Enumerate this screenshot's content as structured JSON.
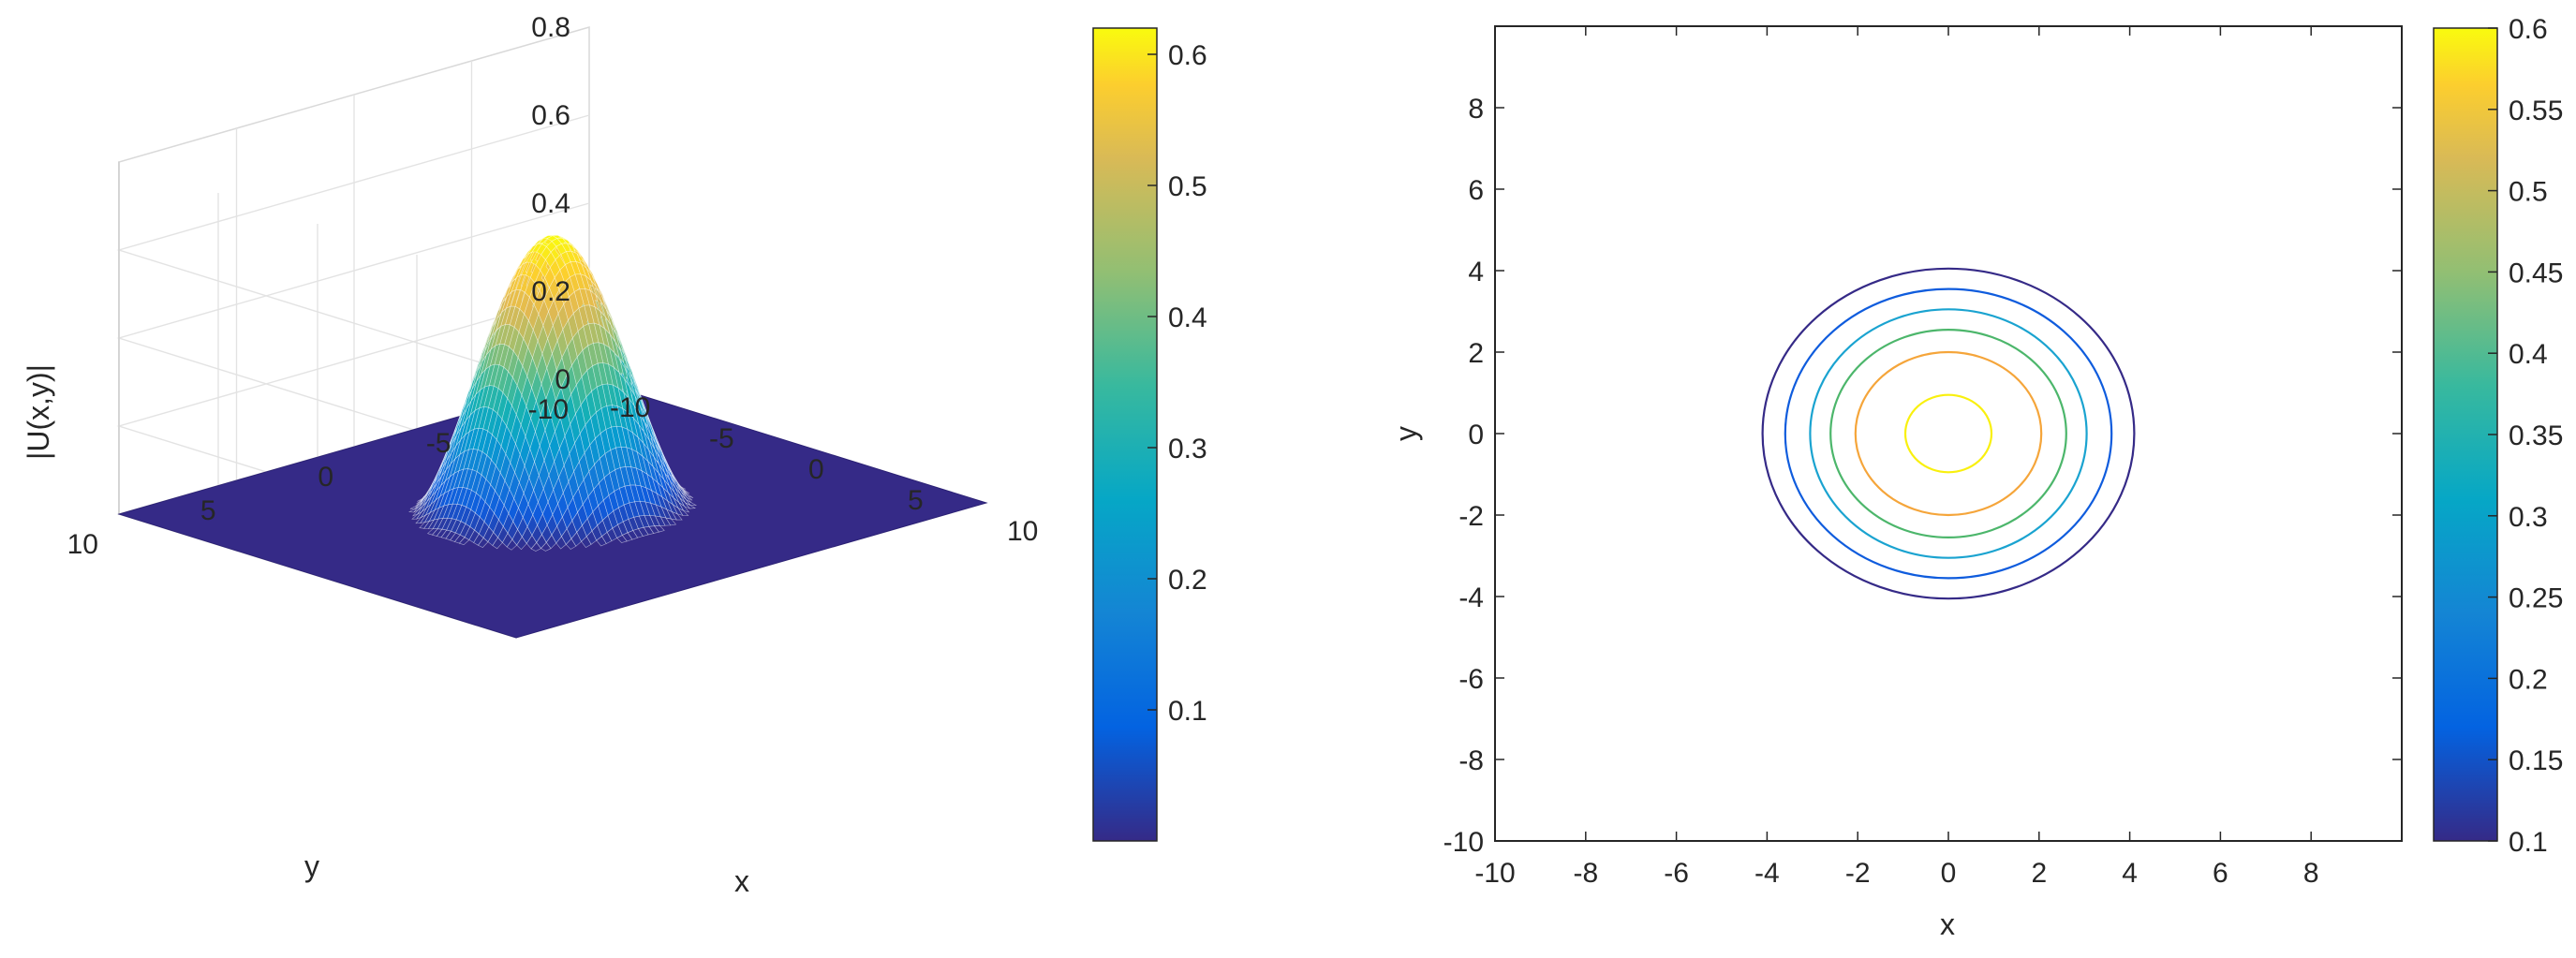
{
  "chart_data": [
    {
      "type": "surface",
      "z_function": "sech-like bell: peak 0.62 at (0,0), falls to 0 near r=4.6",
      "xlabel": "x",
      "ylabel": "y",
      "zlabel": "|U(x,y)|",
      "xlim": [
        -10,
        10
      ],
      "ylim": [
        -10,
        10
      ],
      "zlim": [
        0,
        0.8
      ],
      "x_ticks": [
        "-10",
        "-5",
        "0",
        "5",
        "10"
      ],
      "y_ticks": [
        "10",
        "5",
        "0",
        "-5",
        "-10"
      ],
      "z_ticks": [
        "0",
        "0.2",
        "0.4",
        "0.6",
        "0.8"
      ],
      "peak": 0.62,
      "colormap": "parula",
      "grid": true,
      "colorbar": {
        "range": [
          0,
          0.62
        ],
        "ticks": [
          "0.1",
          "0.2",
          "0.3",
          "0.4",
          "0.5",
          "0.6"
        ]
      }
    },
    {
      "type": "contour",
      "xlabel": "x",
      "ylabel": "y",
      "xlim": [
        -10,
        10
      ],
      "ylim": [
        -10,
        10
      ],
      "x_ticks": [
        "-10",
        "-8",
        "-6",
        "-4",
        "-2",
        "0",
        "2",
        "4",
        "6",
        "8"
      ],
      "y_ticks": [
        "8",
        "6",
        "4",
        "2",
        "0",
        "-2",
        "-4",
        "-6",
        "-8",
        "-10"
      ],
      "levels": [
        {
          "level": 0.1,
          "rx": 4.1,
          "ry": 4.05,
          "color": "#352a87"
        },
        {
          "level": 0.2,
          "rx": 3.6,
          "ry": 3.55,
          "color": "#0f5cdd"
        },
        {
          "level": 0.3,
          "rx": 3.05,
          "ry": 3.05,
          "color": "#1aa3d0"
        },
        {
          "level": 0.4,
          "rx": 2.6,
          "ry": 2.55,
          "color": "#4cb66b"
        },
        {
          "level": 0.5,
          "rx": 2.05,
          "ry": 2.0,
          "color": "#f5a53a"
        },
        {
          "level": 0.6,
          "rx": 0.95,
          "ry": 0.95,
          "color": "#f9f00e"
        }
      ],
      "colorbar": {
        "range": [
          0.1,
          0.6
        ],
        "ticks": [
          "0.6",
          "0.55",
          "0.5",
          "0.45",
          "0.4",
          "0.35",
          "0.3",
          "0.25",
          "0.2",
          "0.15",
          "0.1"
        ]
      }
    }
  ]
}
